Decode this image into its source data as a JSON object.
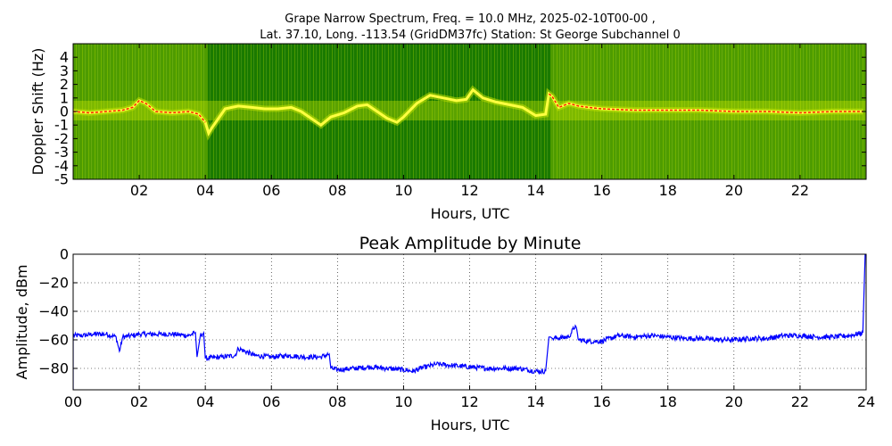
{
  "figure": {
    "title_line1": "Grape Narrow Spectrum, Freq. = 10.0 MHz, 2025-02-10T00-00 ,",
    "title_line2": "Lat.  37.10, Long. -113.54 (GridDM37fc) Station: St George Subchannel 0"
  },
  "chart_data": [
    {
      "type": "heatmap",
      "title": "",
      "xlabel": "Hours, UTC",
      "ylabel": "Doppler Shift (Hz)",
      "xlim": [
        0,
        24
      ],
      "ylim": [
        -5,
        5
      ],
      "xticks": [
        "02",
        "04",
        "06",
        "08",
        "10",
        "12",
        "14",
        "16",
        "18",
        "20",
        "22"
      ],
      "yticks": [
        "4",
        "3",
        "2",
        "1",
        "0",
        "-1",
        "-2",
        "-3",
        "-4",
        "-5"
      ],
      "colormap": {
        "background": "#1a7a00",
        "mid": "#bfe000",
        "high": "#ffff40",
        "peak": "#ff2000"
      },
      "grid": false,
      "doppler_trace": {
        "x": [
          0,
          0.5,
          1,
          1.5,
          1.8,
          2.0,
          2.2,
          2.5,
          3.0,
          3.5,
          3.8,
          4.0,
          4.1,
          4.2,
          4.4,
          4.6,
          4.8,
          5.0,
          5.4,
          5.8,
          6.2,
          6.6,
          6.9,
          7.2,
          7.5,
          7.8,
          8.2,
          8.6,
          8.9,
          9.2,
          9.5,
          9.8,
          10.0,
          10.4,
          10.8,
          11.2,
          11.6,
          11.9,
          12.1,
          12.4,
          12.8,
          13.2,
          13.6,
          14.0,
          14.3,
          14.4,
          14.5,
          14.7,
          15.0,
          15.3,
          15.6,
          16.0,
          17.0,
          18.0,
          19.0,
          20.0,
          21.0,
          22.0,
          23.0,
          23.9
        ],
        "y": [
          0,
          -0.1,
          0,
          0.1,
          0.3,
          0.8,
          0.6,
          0,
          -0.1,
          0,
          -0.2,
          -0.8,
          -1.6,
          -1.2,
          -0.5,
          0.2,
          0.3,
          0.4,
          0.3,
          0.2,
          0.2,
          0.3,
          0.0,
          -0.5,
          -1.0,
          -0.4,
          -0.1,
          0.4,
          0.5,
          0.0,
          -0.5,
          -0.8,
          -0.4,
          0.6,
          1.2,
          1.0,
          0.8,
          0.9,
          1.6,
          1.0,
          0.7,
          0.5,
          0.3,
          -0.3,
          -0.2,
          1.3,
          1.1,
          0.3,
          0.6,
          0.4,
          0.3,
          0.2,
          0.1,
          0.1,
          0.1,
          0.0,
          0.0,
          -0.1,
          0.0,
          0.0
        ]
      }
    },
    {
      "type": "line",
      "title": "Peak Amplitude by Minute",
      "xlabel": "Hours, UTC",
      "ylabel": "Amplitude, dBm",
      "xlim": [
        0,
        24
      ],
      "ylim": [
        -95,
        0
      ],
      "xticks": [
        "00",
        "02",
        "04",
        "06",
        "08",
        "10",
        "12",
        "14",
        "16",
        "18",
        "20",
        "22",
        "24"
      ],
      "yticks": [
        "0",
        "−20",
        "−40",
        "−60",
        "−80"
      ],
      "ytick_values": [
        0,
        -20,
        -40,
        -60,
        -80
      ],
      "grid": true,
      "series": [
        {
          "color": "#0000ff",
          "x": [
            0,
            0.3,
            0.6,
            1.0,
            1.3,
            1.4,
            1.5,
            1.8,
            2.0,
            2.5,
            3.0,
            3.5,
            3.7,
            3.75,
            3.85,
            3.95,
            4.0,
            4.5,
            4.9,
            5.0,
            5.5,
            6.0,
            6.5,
            7.0,
            7.5,
            7.75,
            7.8,
            8.0,
            8.5,
            9.0,
            9.5,
            10.0,
            10.3,
            10.5,
            11.0,
            11.5,
            12.0,
            12.5,
            13.0,
            13.5,
            14.0,
            14.3,
            14.4,
            14.45,
            14.5,
            15.0,
            15.2,
            15.3,
            15.6,
            16.0,
            16.5,
            17.0,
            17.5,
            18.0,
            18.5,
            19.0,
            19.5,
            20.0,
            20.5,
            21.0,
            21.5,
            22.0,
            22.5,
            23.0,
            23.5,
            23.9,
            23.97
          ],
          "y": [
            -57,
            -57,
            -56,
            -56,
            -58,
            -68,
            -58,
            -57,
            -56,
            -56,
            -56,
            -57,
            -55,
            -72,
            -57,
            -55,
            -73,
            -72,
            -71,
            -66,
            -71,
            -72,
            -71,
            -72,
            -72,
            -70,
            -80,
            -81,
            -80,
            -79,
            -80,
            -81,
            -82,
            -80,
            -77,
            -78,
            -79,
            -80,
            -80,
            -80,
            -82,
            -82,
            -58,
            -58,
            -59,
            -58,
            -50,
            -60,
            -61,
            -61,
            -57,
            -58,
            -57,
            -58,
            -59,
            -59,
            -60,
            -60,
            -59,
            -59,
            -57,
            -57,
            -58,
            -58,
            -57,
            -55,
            0
          ]
        }
      ]
    }
  ]
}
